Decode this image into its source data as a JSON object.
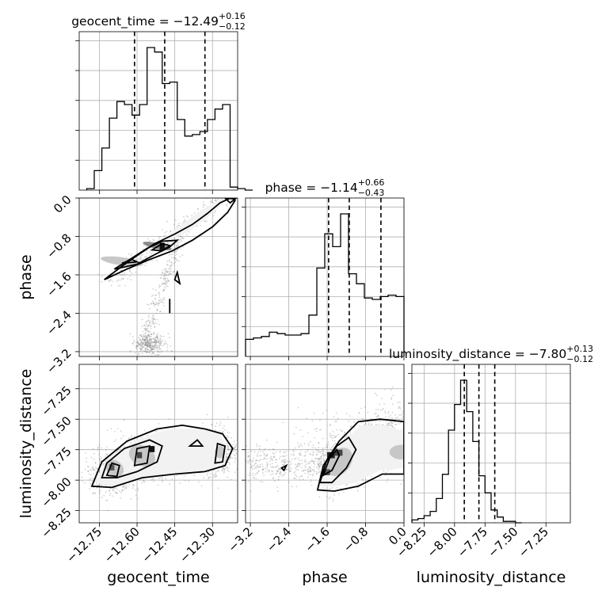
{
  "chart_data": {
    "type": "corner",
    "parameters": [
      "geocent_time",
      "phase",
      "luminosity_distance"
    ],
    "ranges": {
      "geocent_time": [
        -12.83,
        -12.2
      ],
      "phase": [
        -3.3,
        0.0
      ],
      "luminosity_distance": [
        -8.35,
        -7.05
      ]
    },
    "ticks": {
      "geocent_time": [
        -12.75,
        -12.6,
        -12.45,
        -12.3
      ],
      "phase": [
        -3.2,
        -2.4,
        -1.6,
        -0.8,
        0.0
      ],
      "luminosity_distance": [
        -8.25,
        -8.0,
        -7.75,
        -7.5,
        -7.25
      ]
    },
    "tick_labels": {
      "geocent_time": [
        "−12.75",
        "−12.60",
        "−12.45",
        "−12.30"
      ],
      "phase": [
        "−3.2",
        "−2.4",
        "−1.6",
        "−0.8",
        "0.0"
      ],
      "luminosity_distance": [
        "−8.25",
        "−8.00",
        "−7.75",
        "−7.50",
        "−7.25"
      ]
    },
    "titles": {
      "geocent_time": {
        "prefix": "geocent_time = ",
        "median": "−12.49",
        "plus": "+0.16",
        "minus": "−0.12"
      },
      "phase": {
        "prefix": "phase = ",
        "median": "−1.14",
        "plus": "+0.66",
        "minus": "−0.43"
      },
      "luminosity_distance": {
        "prefix": "luminosity_distance = ",
        "median": "−7.80",
        "plus": "+0.13",
        "minus": "−0.12"
      }
    },
    "quantiles": {
      "geocent_time": [
        -12.61,
        -12.49,
        -12.33
      ],
      "phase": [
        -1.57,
        -1.14,
        -0.48
      ],
      "luminosity_distance": [
        -7.92,
        -7.8,
        -7.67
      ]
    },
    "histograms": {
      "geocent_time": {
        "edges_start": -12.8,
        "bin_width": 0.03,
        "heights": [
          0.01,
          0.13,
          0.28,
          0.48,
          0.59,
          0.57,
          0.5,
          0.57,
          0.95,
          0.92,
          0.71,
          0.72,
          0.47,
          0.36,
          0.37,
          0.39,
          0.47,
          0.54,
          0.57,
          0.02,
          0.01,
          0.0
        ]
      },
      "phase": {
        "edges_start": -3.3,
        "bin_width": 0.165,
        "heights": [
          0.12,
          0.13,
          0.14,
          0.17,
          0.16,
          0.15,
          0.15,
          0.16,
          0.29,
          0.62,
          0.86,
          0.77,
          1.0,
          0.58,
          0.51,
          0.41,
          0.4,
          0.42,
          0.43,
          0.42
        ]
      },
      "luminosity_distance": {
        "edges_start": -8.35,
        "bin_width": 0.05,
        "heights": [
          0.02,
          0.03,
          0.05,
          0.08,
          0.17,
          0.34,
          0.65,
          0.83,
          1.0,
          0.78,
          0.57,
          0.33,
          0.21,
          0.09,
          0.04,
          0.01,
          0.01,
          0.0
        ]
      }
    },
    "grid": true
  }
}
